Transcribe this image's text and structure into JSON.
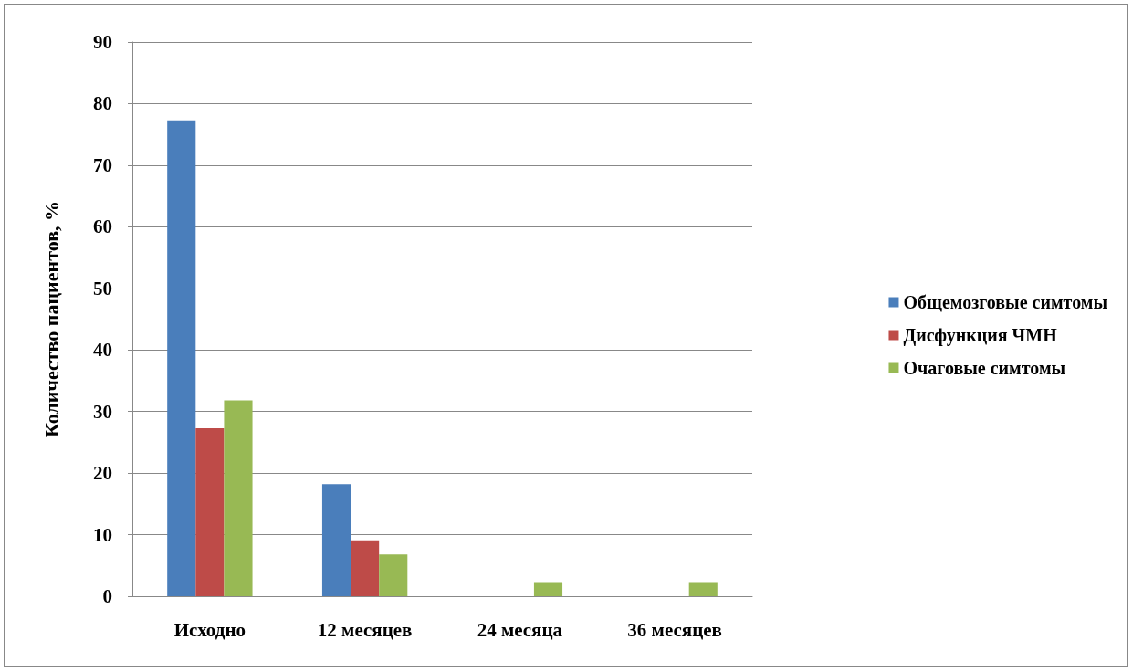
{
  "chart_data": {
    "type": "bar",
    "ylabel": "Количество пациентов, %",
    "categories": [
      "Исходно",
      "12 месяцев",
      "24 месяца",
      "36 месяцев"
    ],
    "series": [
      {
        "name": "Общемозговые симтомы",
        "color": "#4a7ebb",
        "values": [
          77.3,
          18.2,
          0,
          0
        ]
      },
      {
        "name": "Дисфункция ЧМН",
        "color": "#be4b48",
        "values": [
          27.3,
          9.1,
          0,
          0
        ]
      },
      {
        "name": "Очаговые симтомы",
        "color": "#98b954",
        "values": [
          31.8,
          6.8,
          2.3,
          2.3
        ]
      }
    ],
    "ylim": [
      0,
      90
    ],
    "yticks": [
      0,
      10,
      20,
      30,
      40,
      50,
      60,
      70,
      80,
      90
    ],
    "grid": "y",
    "legend": "right"
  }
}
